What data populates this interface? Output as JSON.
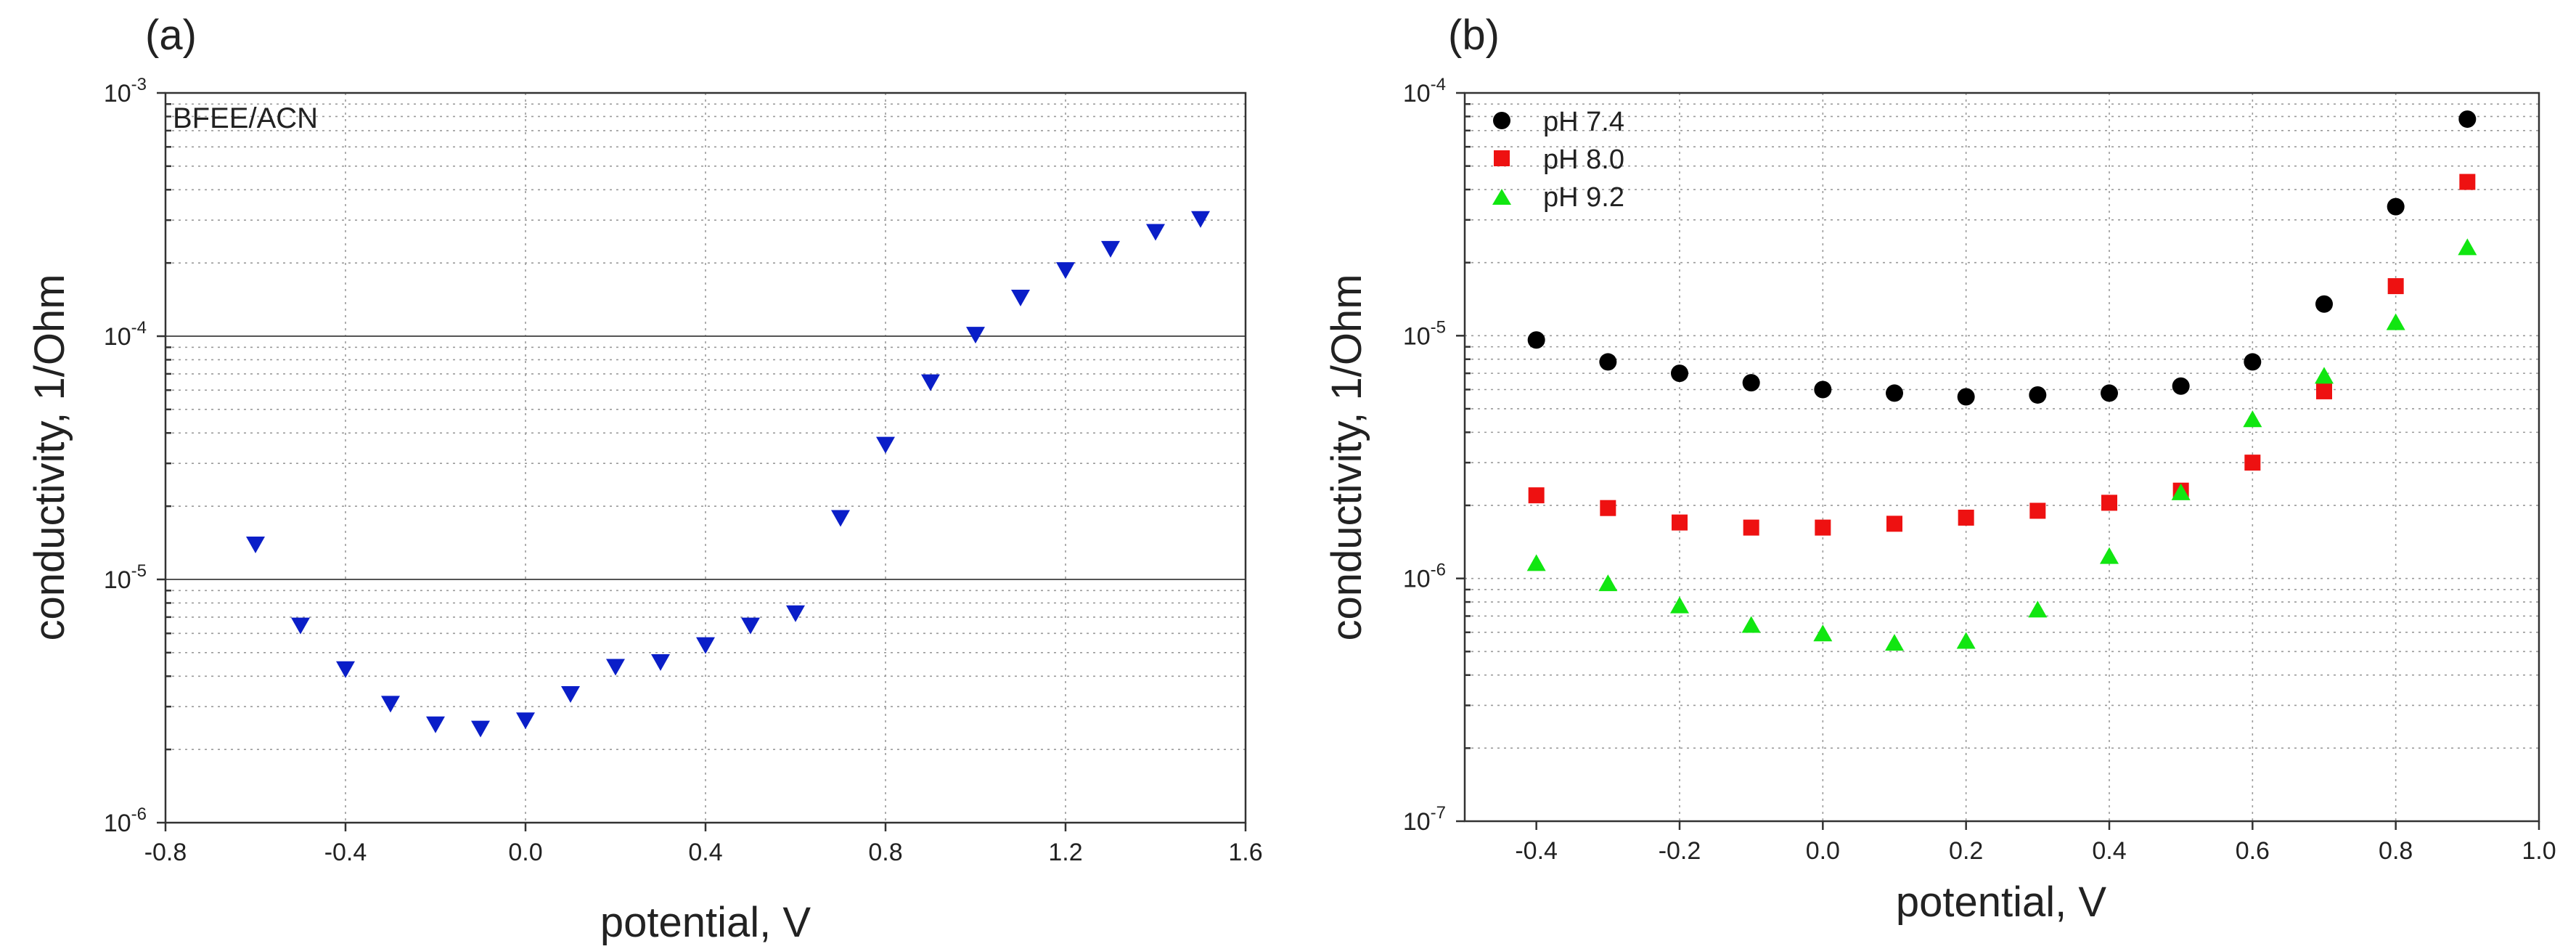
{
  "colors": {
    "series_a": "#0a1ec8",
    "ph74": "#000000",
    "ph80": "#ee1111",
    "ph92": "#11e611"
  },
  "chart_data": [
    {
      "type": "scatter",
      "panel_label": "(a)",
      "annotation": "BFEE/ACN",
      "xlabel": "potential, V",
      "ylabel": "conductivity, 1/Ohm",
      "yscale": "log",
      "xlim": [
        -0.8,
        1.6
      ],
      "ylim_exp": [
        -6,
        -3
      ],
      "x_ticks": [
        -0.8,
        -0.4,
        0.0,
        0.4,
        0.8,
        1.2,
        1.6
      ],
      "x_tick_labels": [
        "-0.8",
        "-0.4",
        "0.0",
        "0.4",
        "0.8",
        "1.2",
        "1.6"
      ],
      "y_tick_exponents": [
        "-6",
        "-5",
        "-4",
        "-3"
      ],
      "y_tick_base": "10",
      "series": [
        {
          "name": "BFEE/ACN",
          "marker": "triangle-down",
          "color": "#0a1ec8",
          "x": [
            -0.6,
            -0.5,
            -0.4,
            -0.3,
            -0.2,
            -0.1,
            0.0,
            0.1,
            0.2,
            0.3,
            0.4,
            0.5,
            0.6,
            0.7,
            0.8,
            0.9,
            1.0,
            1.1,
            1.2,
            1.3,
            1.4,
            1.5
          ],
          "y": [
            1.4e-05,
            6.5e-06,
            4.3e-06,
            3.1e-06,
            2.55e-06,
            2.45e-06,
            2.65e-06,
            3.4e-06,
            4.4e-06,
            4.6e-06,
            5.4e-06,
            6.5e-06,
            7.3e-06,
            1.8e-05,
            3.6e-05,
            6.5e-05,
            0.000102,
            0.000145,
            0.000188,
            0.00023,
            0.00027,
            0.000305
          ]
        }
      ]
    },
    {
      "type": "scatter",
      "panel_label": "(b)",
      "xlabel": "potential, V",
      "ylabel": "conductivity, 1/Ohm",
      "yscale": "log",
      "xlim": [
        -0.5,
        1.0
      ],
      "ylim_exp": [
        -7,
        -4
      ],
      "x_ticks": [
        -0.4,
        -0.2,
        0.0,
        0.2,
        0.4,
        0.6,
        0.8,
        1.0
      ],
      "x_tick_labels": [
        "-0.4",
        "-0.2",
        "0.0",
        "0.2",
        "0.4",
        "0.6",
        "0.8",
        "1.0"
      ],
      "y_tick_exponents": [
        "-7",
        "-6",
        "-5",
        "-4"
      ],
      "y_tick_base": "10",
      "legend_position": "top-left",
      "series": [
        {
          "name": "pH 7.4",
          "marker": "circle",
          "color": "#000000",
          "x": [
            -0.4,
            -0.3,
            -0.2,
            -0.1,
            0.0,
            0.1,
            0.2,
            0.3,
            0.4,
            0.5,
            0.6,
            0.7,
            0.8,
            0.9
          ],
          "y": [
            9.6e-06,
            7.8e-06,
            7e-06,
            6.4e-06,
            6e-06,
            5.8e-06,
            5.6e-06,
            5.7e-06,
            5.8e-06,
            6.2e-06,
            7.8e-06,
            1.35e-05,
            3.4e-05,
            7.8e-05
          ]
        },
        {
          "name": "pH 8.0",
          "marker": "square",
          "color": "#ee1111",
          "x": [
            -0.4,
            -0.3,
            -0.2,
            -0.1,
            0.0,
            0.1,
            0.2,
            0.3,
            0.4,
            0.5,
            0.6,
            0.7,
            0.8,
            0.9
          ],
          "y": [
            2.2e-06,
            1.95e-06,
            1.7e-06,
            1.62e-06,
            1.62e-06,
            1.68e-06,
            1.78e-06,
            1.9e-06,
            2.05e-06,
            2.3e-06,
            3e-06,
            5.9e-06,
            1.6e-05,
            4.3e-05
          ]
        },
        {
          "name": "pH 9.2",
          "marker": "triangle-up",
          "color": "#11e611",
          "x": [
            -0.4,
            -0.3,
            -0.2,
            -0.1,
            0.0,
            0.1,
            0.2,
            0.3,
            0.4,
            0.5,
            0.6,
            0.7,
            0.8,
            0.9
          ],
          "y": [
            1.15e-06,
            9.5e-07,
            7.7e-07,
            6.4e-07,
            5.9e-07,
            5.4e-07,
            5.5e-07,
            7.4e-07,
            1.23e-06,
            2.25e-06,
            4.5e-06,
            6.8e-06,
            1.13e-05,
            2.3e-05
          ]
        }
      ]
    }
  ]
}
